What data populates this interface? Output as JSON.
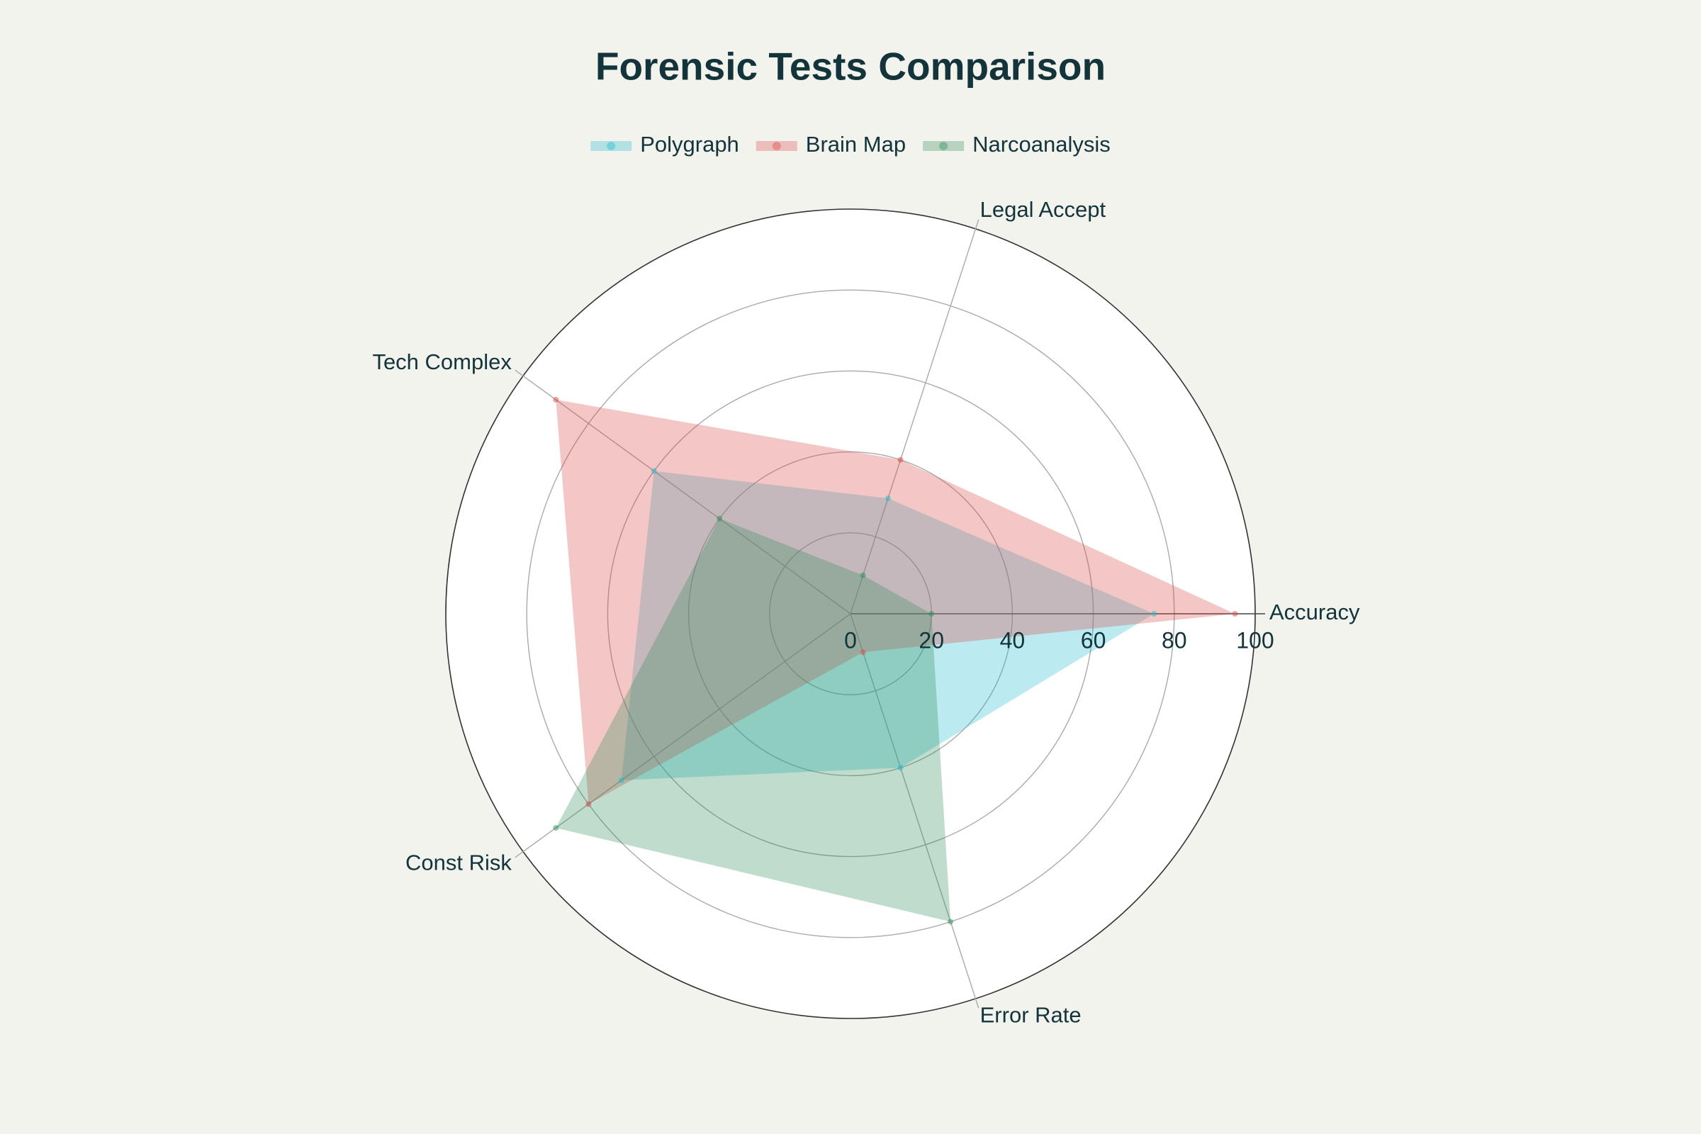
{
  "chart_data": {
    "type": "radar",
    "title": "Forensic Tests Comparison",
    "categories": [
      "Accuracy",
      "Legal Accept",
      "Tech Complex",
      "Const Risk",
      "Error Rate"
    ],
    "series": [
      {
        "name": "Polygraph",
        "color": "#1FB8CD",
        "values": [
          75,
          30,
          60,
          70,
          40
        ]
      },
      {
        "name": "Brain Map",
        "color": "#DB4545",
        "values": [
          95,
          40,
          90,
          80,
          10
        ]
      },
      {
        "name": "Narcoanalysis",
        "color": "#2E8B57",
        "values": [
          20,
          10,
          40,
          90,
          80
        ]
      }
    ],
    "rlim": [
      0,
      100
    ],
    "rticks": [
      0,
      20,
      40,
      60,
      80,
      100
    ],
    "grid": true
  }
}
